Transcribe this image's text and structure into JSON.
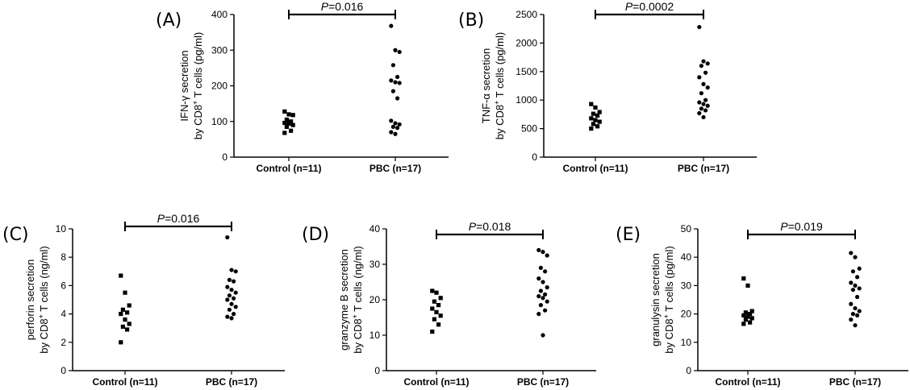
{
  "figure": {
    "categories": [
      "Control (n=11)",
      "PBC (n=17)"
    ]
  },
  "chart_data": [
    {
      "panel": "(A)",
      "type": "scatter",
      "ylabel_line1": "IFN-γ secretion",
      "ylabel_line2_pre": "by CD8",
      "ylabel_sup": "+",
      "ylabel_line2_post": " T cells (pg/ml)",
      "p_label": "P",
      "p_value": "=0.016",
      "ylim": [
        0,
        400
      ],
      "yticks": [
        "0",
        "100",
        "200",
        "300",
        "400"
      ],
      "series": [
        {
          "category": "Control (n=11)",
          "marker": "square",
          "values": [
            128,
            120,
            118,
            105,
            100,
            96,
            94,
            90,
            85,
            74,
            68
          ]
        },
        {
          "category": "PBC (n=17)",
          "marker": "circle",
          "values": [
            368,
            300,
            295,
            258,
            225,
            215,
            210,
            208,
            185,
            165,
            102,
            95,
            92,
            85,
            82,
            70,
            65
          ]
        }
      ]
    },
    {
      "panel": "(B)",
      "type": "scatter",
      "ylabel_line1": "TNF-α secretion",
      "ylabel_line2_pre": "by CD8",
      "ylabel_sup": "+",
      "ylabel_line2_post": " T cells (pg/ml)",
      "p_label": "P",
      "p_value": "=0.0002",
      "ylim": [
        0,
        2500
      ],
      "yticks": [
        "0",
        "500",
        "1000",
        "1500",
        "2000",
        "2500"
      ],
      "series": [
        {
          "category": "Control (n=11)",
          "marker": "square",
          "values": [
            930,
            870,
            790,
            760,
            730,
            680,
            650,
            620,
            580,
            540,
            500
          ]
        },
        {
          "category": "PBC (n=17)",
          "marker": "circle",
          "values": [
            2280,
            1680,
            1640,
            1600,
            1480,
            1400,
            1280,
            1220,
            1120,
            1000,
            960,
            930,
            900,
            850,
            820,
            770,
            700
          ]
        }
      ]
    },
    {
      "panel": "(C)",
      "type": "scatter",
      "ylabel_line1": "perforin secretion",
      "ylabel_line2_pre": "by CD8",
      "ylabel_sup": "+",
      "ylabel_line2_post": " T cells (ng/ml)",
      "p_label": "P",
      "p_value": "=0.016",
      "ylim": [
        0,
        10
      ],
      "yticks": [
        "0",
        "2",
        "4",
        "6",
        "8",
        "10"
      ],
      "series": [
        {
          "category": "Control (n=11)",
          "marker": "square",
          "values": [
            6.7,
            5.5,
            4.6,
            4.3,
            4.1,
            4.0,
            3.6,
            3.3,
            3.1,
            2.9,
            2.0
          ]
        },
        {
          "category": "PBC (n=17)",
          "marker": "circle",
          "values": [
            9.4,
            7.1,
            7.0,
            6.4,
            6.3,
            5.9,
            5.7,
            5.5,
            5.3,
            5.1,
            5.0,
            4.7,
            4.5,
            4.3,
            4.0,
            3.8,
            3.7
          ]
        }
      ]
    },
    {
      "panel": "(D)",
      "type": "scatter",
      "ylabel_line1": "granzyme B secretion",
      "ylabel_line2_pre": "by CD8",
      "ylabel_sup": "+",
      "ylabel_line2_post": " T cells (ng/ml)",
      "p_label": "P",
      "p_value": "=0.018",
      "ylim": [
        0,
        40
      ],
      "yticks": [
        "0",
        "10",
        "20",
        "30",
        "40"
      ],
      "series": [
        {
          "category": "Control (n=11)",
          "marker": "square",
          "values": [
            22.5,
            22.0,
            20.5,
            19.5,
            18.5,
            17.5,
            16.5,
            15.5,
            14.5,
            13.0,
            11.0
          ]
        },
        {
          "category": "PBC (n=17)",
          "marker": "circle",
          "values": [
            34.0,
            33.5,
            32.5,
            29.0,
            28.0,
            26.0,
            25.0,
            23.5,
            22.5,
            21.5,
            21.0,
            20.5,
            19.5,
            18.5,
            17.0,
            16.0,
            10.0
          ]
        }
      ]
    },
    {
      "panel": "(E)",
      "type": "scatter",
      "ylabel_line1": "granulysin secretion",
      "ylabel_line2_pre": "by CD8",
      "ylabel_sup": "+",
      "ylabel_line2_post": " T cells (pg/ml)",
      "p_label": "P",
      "p_value": "=0.019",
      "ylim": [
        0,
        50
      ],
      "yticks": [
        "0",
        "10",
        "20",
        "30",
        "40",
        "50"
      ],
      "series": [
        {
          "category": "Control (n=11)",
          "marker": "square",
          "values": [
            32.5,
            30.0,
            21.0,
            20.5,
            20.0,
            19.5,
            19.0,
            18.5,
            18.0,
            17.0,
            16.5
          ]
        },
        {
          "category": "PBC (n=17)",
          "marker": "circle",
          "values": [
            41.5,
            40.0,
            36.0,
            35.0,
            33.0,
            31.0,
            30.0,
            29.0,
            28.5,
            26.0,
            23.5,
            22.0,
            21.0,
            20.0,
            19.5,
            18.0,
            16.0
          ]
        }
      ]
    }
  ]
}
